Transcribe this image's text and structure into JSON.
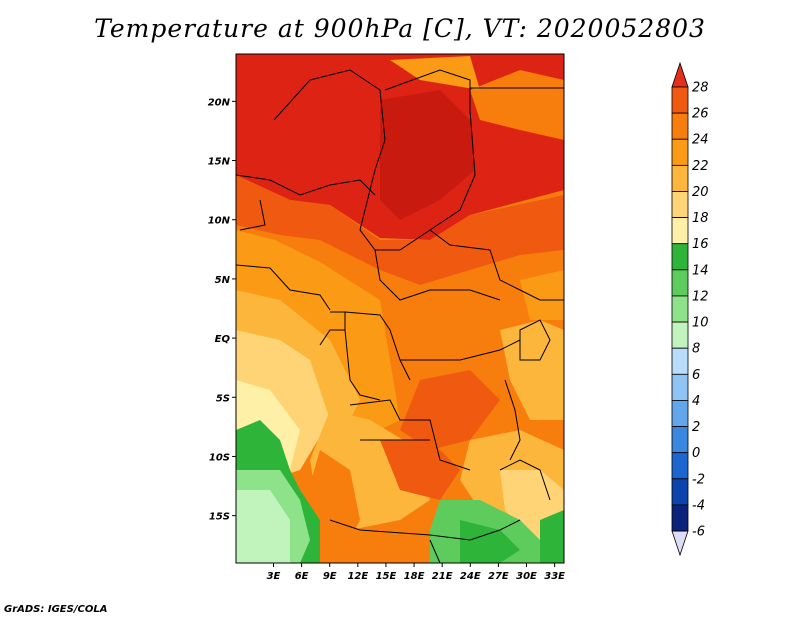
{
  "title": "Temperature at 900hPa [C], VT: 2020052803",
  "credit": "GrADS: IGES/COLA",
  "map": {
    "lon_range": [
      -1,
      34
    ],
    "lat_range": [
      -19,
      24
    ],
    "lon_ticks": [
      {
        "value": 3,
        "label": "3E"
      },
      {
        "value": 6,
        "label": "6E"
      },
      {
        "value": 9,
        "label": "9E"
      },
      {
        "value": 12,
        "label": "12E"
      },
      {
        "value": 15,
        "label": "15E"
      },
      {
        "value": 18,
        "label": "18E"
      },
      {
        "value": 21,
        "label": "21E"
      },
      {
        "value": 24,
        "label": "24E"
      },
      {
        "value": 27,
        "label": "27E"
      },
      {
        "value": 30,
        "label": "30E"
      },
      {
        "value": 33,
        "label": "33E"
      }
    ],
    "lat_ticks": [
      {
        "value": 20,
        "label": "20N"
      },
      {
        "value": 15,
        "label": "15N"
      },
      {
        "value": 10,
        "label": "10N"
      },
      {
        "value": 5,
        "label": "5N"
      },
      {
        "value": 0,
        "label": "EQ"
      },
      {
        "value": -5,
        "label": "5S"
      },
      {
        "value": -10,
        "label": "10S"
      },
      {
        "value": -15,
        "label": "15S"
      }
    ]
  },
  "colorbar": {
    "levels": [
      "28",
      "26",
      "24",
      "22",
      "20",
      "18",
      "16",
      "14",
      "12",
      "10",
      "8",
      "6",
      "4",
      "2",
      "0",
      "-2",
      "-4",
      "-6"
    ],
    "colors": [
      "#e3301c",
      "#ef5a10",
      "#f77d0c",
      "#fb9a14",
      "#fdb63c",
      "#fed477",
      "#fff0a8",
      "#2fb43a",
      "#5dcc5c",
      "#8ee28a",
      "#c1f4bd",
      "#b8dcfa",
      "#8fc3f4",
      "#62a7ec",
      "#3a87e0",
      "#1c66cf",
      "#0c44ad",
      "#0b237d",
      "#060a55",
      "#dcdcf5"
    ]
  }
}
